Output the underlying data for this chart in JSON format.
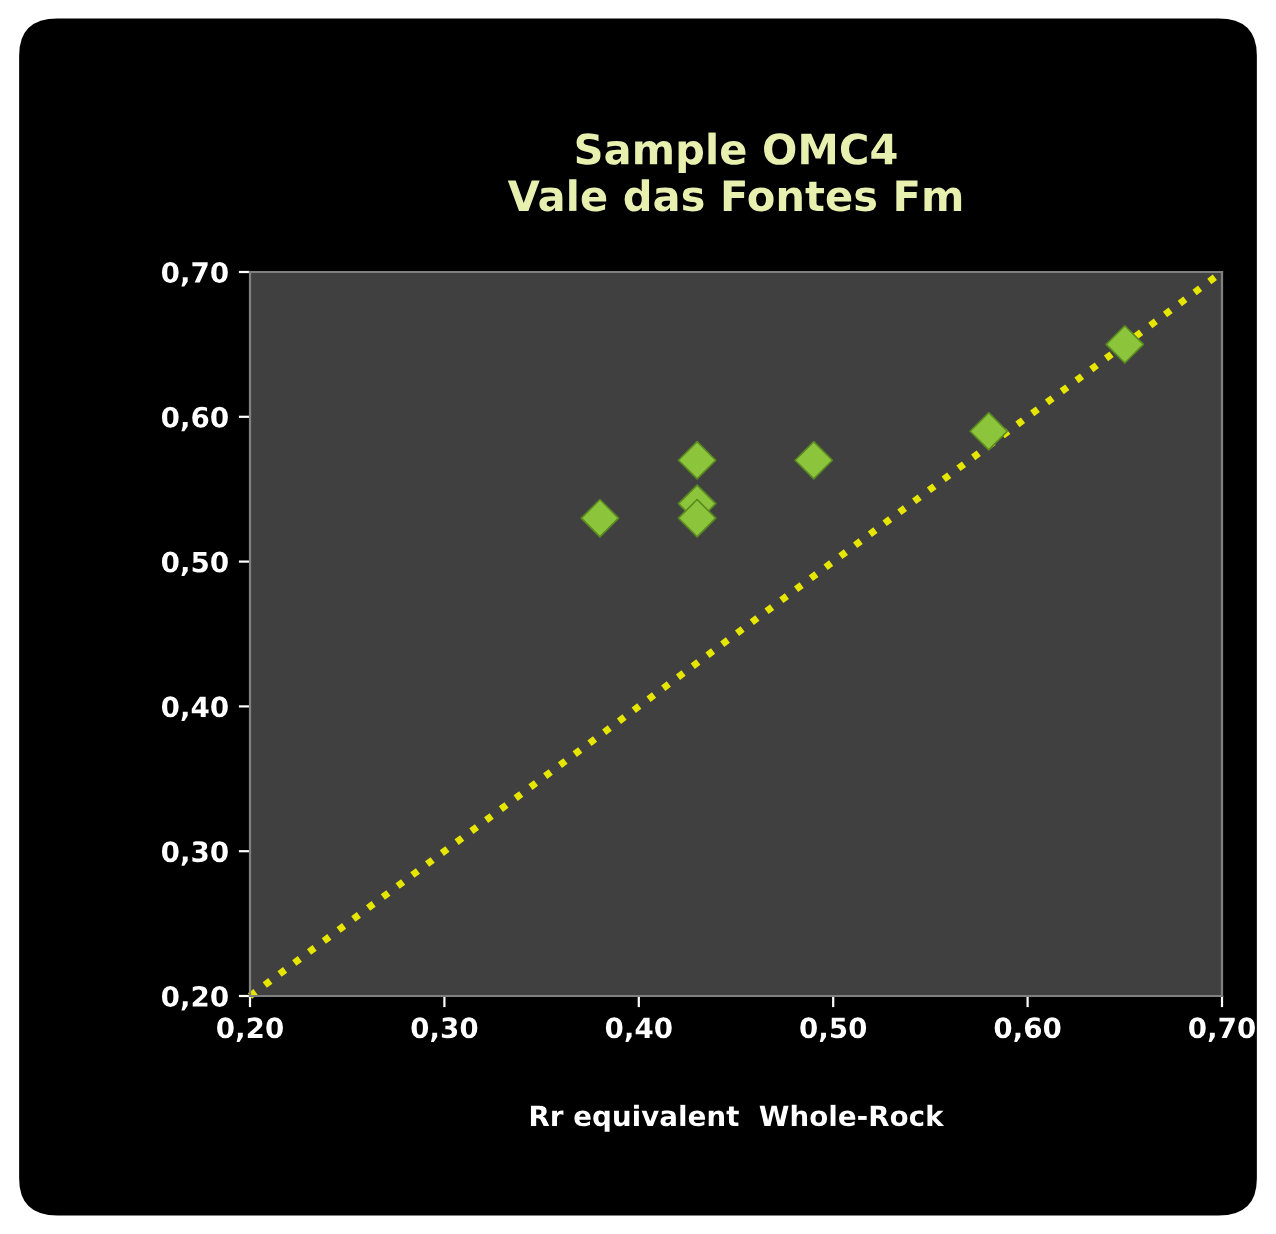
{
  "chart_data": {
    "type": "scatter",
    "title": "Sample OMC4\nVale das Fontes Fm",
    "xlabel": "Rr equivalent  Whole-Rock",
    "series": [
      {
        "color": "#8cc43c",
        "marker": "diamond",
        "x": [
          0.38,
          0.43,
          0.43,
          0.43,
          0.49,
          0.58,
          0.65
        ],
        "values": [
          0.53,
          0.57,
          0.54,
          0.53,
          0.57,
          0.59,
          0.65
        ]
      },
      {
        "type": "line",
        "color": "#e6e600",
        "line_style": "dotted",
        "marker": "none",
        "x": [
          0.2,
          0.7
        ],
        "values": [
          0.2,
          0.7
        ]
      }
    ],
    "xlim": [
      0.2,
      0.7
    ],
    "ylim": [
      0.2,
      0.7
    ],
    "xticks": [
      {
        "value": 0.2,
        "label": "0,20"
      },
      {
        "value": 0.3,
        "label": "0,30"
      },
      {
        "value": 0.4,
        "label": "0,40"
      },
      {
        "value": 0.5,
        "label": "0,50"
      },
      {
        "value": 0.6,
        "label": "0,60"
      },
      {
        "value": 0.7,
        "label": "0,70"
      }
    ],
    "yticks": [
      {
        "value": 0.2,
        "label": "0,20"
      },
      {
        "value": 0.3,
        "label": "0,30"
      },
      {
        "value": 0.4,
        "label": "0,40"
      },
      {
        "value": 0.5,
        "label": "0,50"
      },
      {
        "value": 0.6,
        "label": "0,60"
      },
      {
        "value": 0.7,
        "label": "0,70"
      }
    ],
    "grid": false,
    "legend": false
  }
}
